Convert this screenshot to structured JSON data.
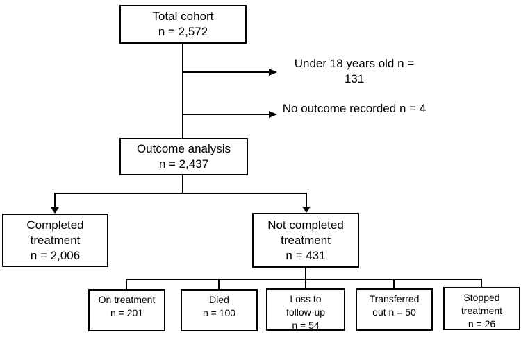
{
  "colors": {
    "background": "#ffffff",
    "box_border": "#000000",
    "box_fill": "#ffffff",
    "line": "#000000",
    "text": "#000000"
  },
  "nodes": {
    "total_cohort": {
      "lines": [
        "Total cohort",
        "n = 2,572"
      ],
      "n": 2572
    },
    "under_18": {
      "lines": [
        "Under 18 years old",
        "n = 131"
      ],
      "n": 131
    },
    "no_outcome": {
      "lines": [
        "No outcome recorded",
        "n = 4"
      ],
      "n": 4
    },
    "outcome_analysis": {
      "lines": [
        "Outcome analysis",
        "n = 2,437"
      ],
      "n": 2437
    },
    "completed": {
      "lines": [
        "Completed",
        "treatment",
        "n = 2,006"
      ],
      "n": 2006
    },
    "not_completed": {
      "lines": [
        "Not completed",
        "treatment",
        "n = 431"
      ],
      "n": 431
    },
    "on_treatment": {
      "lines": [
        "On treatment",
        "n = 201"
      ],
      "n": 201
    },
    "died": {
      "lines": [
        "Died",
        "n = 100"
      ],
      "n": 100
    },
    "loss_followup": {
      "lines": [
        "Loss to",
        "follow-up",
        "n = 54"
      ],
      "n": 54
    },
    "transferred_out": {
      "lines": [
        "Transferred",
        "out n = 50"
      ],
      "n": 50
    },
    "stopped": {
      "lines": [
        "Stopped",
        "treatment",
        "n = 26"
      ],
      "n": 26
    }
  }
}
